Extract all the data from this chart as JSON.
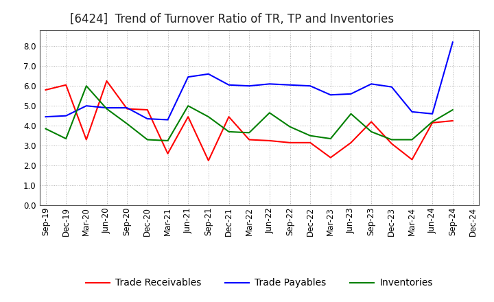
{
  "title": "[6424]  Trend of Turnover Ratio of TR, TP and Inventories",
  "ylim": [
    0.0,
    8.8
  ],
  "yticks": [
    0.0,
    1.0,
    2.0,
    3.0,
    4.0,
    5.0,
    6.0,
    7.0,
    8.0
  ],
  "x_labels": [
    "Sep-19",
    "Dec-19",
    "Mar-20",
    "Jun-20",
    "Sep-20",
    "Dec-20",
    "Mar-21",
    "Jun-21",
    "Sep-21",
    "Dec-21",
    "Mar-22",
    "Jun-22",
    "Sep-22",
    "Dec-22",
    "Mar-23",
    "Jun-23",
    "Sep-23",
    "Dec-23",
    "Mar-24",
    "Jun-24",
    "Sep-24",
    "Dec-24"
  ],
  "trade_receivables": [
    5.8,
    6.05,
    3.3,
    6.25,
    4.85,
    4.8,
    2.6,
    4.45,
    2.25,
    4.45,
    3.3,
    3.25,
    3.15,
    3.15,
    2.4,
    3.15,
    4.2,
    3.1,
    2.3,
    4.15,
    4.25,
    null
  ],
  "trade_payables": [
    4.45,
    4.5,
    5.0,
    4.9,
    4.9,
    4.35,
    4.3,
    6.45,
    6.6,
    6.05,
    6.0,
    6.1,
    6.05,
    6.0,
    5.55,
    5.6,
    6.1,
    5.95,
    4.7,
    4.6,
    8.2,
    null
  ],
  "inventories": [
    3.85,
    3.35,
    6.0,
    4.85,
    4.1,
    3.3,
    3.25,
    5.0,
    4.45,
    3.7,
    3.65,
    4.65,
    3.95,
    3.5,
    3.35,
    4.6,
    3.7,
    3.3,
    3.3,
    4.2,
    4.8,
    null
  ],
  "tr_color": "#ff0000",
  "tp_color": "#0000ff",
  "inv_color": "#008000",
  "legend_labels": [
    "Trade Receivables",
    "Trade Payables",
    "Inventories"
  ],
  "background_color": "#ffffff",
  "grid_color": "#b0b0b0",
  "title_fontsize": 12,
  "tick_fontsize": 8.5,
  "legend_fontsize": 10
}
